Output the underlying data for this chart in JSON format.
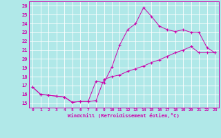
{
  "xlabel": "Windchill (Refroidissement éolien,°C)",
  "bg_color": "#b0e8e8",
  "grid_color": "#ffffff",
  "line_color": "#cc00aa",
  "xlim": [
    -0.5,
    23.5
  ],
  "ylim": [
    14.5,
    26.5
  ],
  "xticks": [
    0,
    1,
    2,
    3,
    4,
    5,
    6,
    7,
    8,
    9,
    10,
    11,
    12,
    13,
    14,
    15,
    16,
    17,
    18,
    19,
    20,
    21,
    22,
    23
  ],
  "yticks": [
    15,
    16,
    17,
    18,
    19,
    20,
    21,
    22,
    23,
    24,
    25,
    26
  ],
  "line1_x": [
    0,
    1,
    2,
    3,
    4,
    5,
    6,
    7,
    8,
    9,
    10,
    11,
    12,
    13,
    14,
    15,
    16,
    17,
    18,
    19,
    20,
    21,
    22,
    23
  ],
  "line1_y": [
    16.8,
    16.0,
    15.9,
    15.8,
    15.7,
    15.1,
    15.2,
    15.2,
    17.5,
    17.3,
    19.1,
    21.6,
    23.3,
    24.0,
    25.8,
    24.8,
    23.7,
    23.3,
    23.1,
    23.3,
    23.0,
    23.0,
    21.3,
    20.7
  ],
  "line2_x": [
    0,
    1,
    2,
    3,
    4,
    5,
    6,
    7,
    8,
    9,
    10,
    11,
    12,
    13,
    14,
    15,
    16,
    17,
    18,
    19,
    20,
    21,
    22,
    23
  ],
  "line2_y": [
    16.8,
    16.0,
    15.9,
    15.8,
    15.7,
    15.1,
    15.2,
    15.2,
    15.3,
    17.7,
    18.0,
    18.2,
    18.6,
    18.9,
    19.2,
    19.6,
    19.9,
    20.3,
    20.7,
    21.0,
    21.4,
    20.7,
    20.7,
    20.7
  ]
}
